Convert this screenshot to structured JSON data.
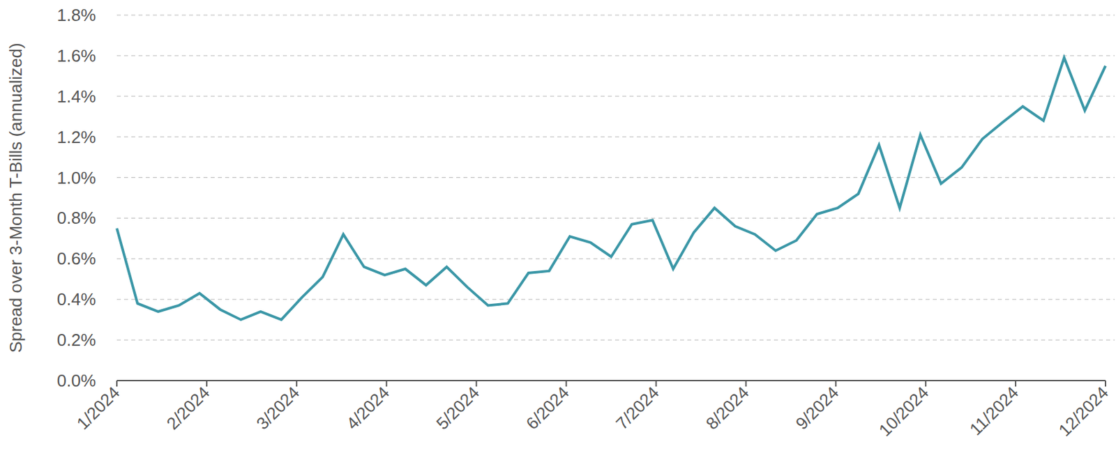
{
  "chart_data": {
    "type": "line",
    "y_label": "Spread over 3-Month T-Bills (annualized)",
    "x": [
      1,
      1.23,
      1.46,
      1.69,
      1.92,
      2.15,
      2.38,
      2.6,
      2.83,
      3.06,
      3.29,
      3.52,
      3.75,
      3.98,
      4.21,
      4.44,
      4.67,
      4.9,
      5.13,
      5.35,
      5.58,
      5.81,
      6.04,
      6.27,
      6.5,
      6.73,
      6.96,
      7.19,
      7.42,
      7.65,
      7.88,
      8.1,
      8.33,
      8.56,
      8.79,
      9.02,
      9.25,
      9.48,
      9.71,
      9.94,
      10.17,
      10.4,
      10.63,
      10.85,
      11.08,
      11.31,
      11.54,
      11.77,
      12
    ],
    "values": [
      0.75,
      0.38,
      0.34,
      0.37,
      0.43,
      0.35,
      0.3,
      0.34,
      0.3,
      0.41,
      0.51,
      0.72,
      0.56,
      0.52,
      0.55,
      0.47,
      0.56,
      0.46,
      0.37,
      0.38,
      0.53,
      0.54,
      0.71,
      0.68,
      0.61,
      0.77,
      0.79,
      0.55,
      0.73,
      0.85,
      0.76,
      0.72,
      0.64,
      0.69,
      0.82,
      0.85,
      0.92,
      1.16,
      0.85,
      1.21,
      0.97,
      1.05,
      1.19,
      1.27,
      1.35,
      1.28,
      1.59,
      1.33,
      1.55
    ],
    "color": "#3b97a7",
    "xlim": [
      1,
      12
    ],
    "xticks": [
      {
        "value": 1,
        "label": "1/2024"
      },
      {
        "value": 2,
        "label": "2/2024"
      },
      {
        "value": 3,
        "label": "3/2024"
      },
      {
        "value": 4,
        "label": "4/2024"
      },
      {
        "value": 5,
        "label": "5/2024"
      },
      {
        "value": 6,
        "label": "6/2024"
      },
      {
        "value": 7,
        "label": "7/2024"
      },
      {
        "value": 8,
        "label": "8/2024"
      },
      {
        "value": 9,
        "label": "9/2024"
      },
      {
        "value": 10,
        "label": "10/2024"
      },
      {
        "value": 11,
        "label": "11/2024"
      },
      {
        "value": 12,
        "label": "12/2024"
      }
    ],
    "ylim": [
      0,
      1.8
    ],
    "yticks": [
      {
        "value": 0,
        "label": "0.0%"
      },
      {
        "value": 0.2,
        "label": "0.2%"
      },
      {
        "value": 0.4,
        "label": "0.4%"
      },
      {
        "value": 0.6,
        "label": "0.6%"
      },
      {
        "value": 0.8,
        "label": "0.8%"
      },
      {
        "value": 1,
        "label": "1.0%"
      },
      {
        "value": 1.2,
        "label": "1.2%"
      },
      {
        "value": 1.4,
        "label": "1.4%"
      },
      {
        "value": 1.6,
        "label": "1.6%"
      },
      {
        "value": 1.8,
        "label": "1.8%"
      }
    ],
    "grid": true
  }
}
